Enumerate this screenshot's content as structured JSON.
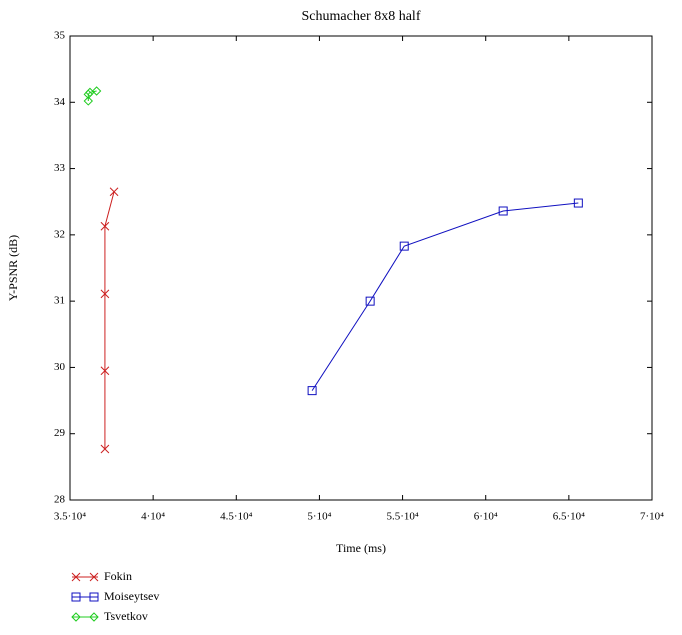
{
  "chart_data": {
    "type": "line",
    "title": "Schumacher 8x8 half",
    "x_label": "Time (ms)",
    "y_label": "Y-PSNR (dB)",
    "xlim": [
      35000,
      70000
    ],
    "ylim": [
      28,
      35
    ],
    "xticks": [
      {
        "value": 35000,
        "label": "3.5·10⁴"
      },
      {
        "value": 40000,
        "label": "4·10⁴"
      },
      {
        "value": 45000,
        "label": "4.5·10⁴"
      },
      {
        "value": 50000,
        "label": "5·10⁴"
      },
      {
        "value": 55000,
        "label": "5.5·10⁴"
      },
      {
        "value": 60000,
        "label": "6·10⁴"
      },
      {
        "value": 65000,
        "label": "6.5·10⁴"
      },
      {
        "value": 70000,
        "label": "7·10⁴"
      }
    ],
    "yticks": [
      28,
      29,
      30,
      31,
      32,
      33,
      34,
      35
    ],
    "legend": "below",
    "series": [
      {
        "name": "Fokin",
        "color": "#cc2020",
        "marker": "x",
        "x": [
          37100,
          37100,
          37100,
          37100,
          37650
        ],
        "values": [
          28.77,
          29.95,
          31.11,
          32.13,
          32.65
        ]
      },
      {
        "name": "Moiseytsev",
        "color": "#1010c0",
        "marker": "square",
        "x": [
          49560,
          53050,
          55100,
          61050,
          65570
        ],
        "values": [
          29.65,
          31.0,
          31.83,
          32.36,
          32.48
        ]
      },
      {
        "name": "Tsvetkov",
        "color": "#20cc20",
        "marker": "diamond",
        "x": [
          36100,
          36100,
          36200,
          36600
        ],
        "values": [
          34.02,
          34.12,
          34.15,
          34.17
        ]
      }
    ]
  }
}
